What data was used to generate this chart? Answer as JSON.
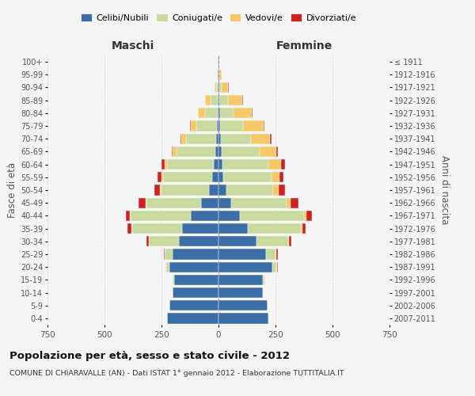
{
  "age_groups": [
    "0-4",
    "5-9",
    "10-14",
    "15-19",
    "20-24",
    "25-29",
    "30-34",
    "35-39",
    "40-44",
    "45-49",
    "50-54",
    "55-59",
    "60-64",
    "65-69",
    "70-74",
    "75-79",
    "80-84",
    "85-89",
    "90-94",
    "95-99",
    "100+"
  ],
  "birth_years": [
    "2007-2011",
    "2002-2006",
    "1997-2001",
    "1992-1996",
    "1987-1991",
    "1982-1986",
    "1977-1981",
    "1972-1976",
    "1967-1971",
    "1962-1966",
    "1957-1961",
    "1952-1956",
    "1947-1951",
    "1942-1946",
    "1937-1941",
    "1932-1936",
    "1927-1931",
    "1922-1926",
    "1917-1921",
    "1912-1916",
    "≤ 1911"
  ],
  "male_celibe": [
    225,
    215,
    200,
    195,
    215,
    200,
    175,
    160,
    120,
    75,
    40,
    28,
    20,
    15,
    12,
    8,
    5,
    4,
    3,
    2,
    2
  ],
  "male_coniugato": [
    1,
    2,
    3,
    5,
    15,
    35,
    130,
    220,
    265,
    240,
    210,
    215,
    205,
    170,
    130,
    90,
    55,
    30,
    8,
    3,
    1
  ],
  "male_vedovo": [
    0,
    0,
    0,
    0,
    1,
    2,
    2,
    3,
    4,
    5,
    6,
    8,
    10,
    15,
    20,
    25,
    30,
    25,
    8,
    2,
    0
  ],
  "male_divorziato": [
    0,
    0,
    0,
    1,
    2,
    4,
    8,
    15,
    18,
    30,
    25,
    15,
    15,
    5,
    5,
    3,
    2,
    0,
    0,
    0,
    0
  ],
  "female_celibe": [
    220,
    215,
    195,
    195,
    235,
    210,
    165,
    130,
    95,
    55,
    35,
    22,
    18,
    14,
    12,
    8,
    6,
    5,
    3,
    2,
    2
  ],
  "female_coniugato": [
    1,
    2,
    3,
    8,
    20,
    40,
    140,
    230,
    280,
    245,
    205,
    210,
    200,
    165,
    130,
    100,
    60,
    35,
    10,
    3,
    1
  ],
  "female_vedovo": [
    0,
    0,
    0,
    1,
    2,
    4,
    5,
    7,
    10,
    15,
    25,
    35,
    55,
    75,
    85,
    90,
    80,
    65,
    30,
    8,
    2
  ],
  "female_divorziato": [
    0,
    0,
    0,
    1,
    2,
    5,
    8,
    15,
    25,
    35,
    28,
    18,
    18,
    5,
    5,
    3,
    2,
    2,
    1,
    0,
    0
  ],
  "color_celibe": "#3a6ea5",
  "color_coniugato": "#c8daa0",
  "color_vedovo": "#f5c96a",
  "color_divorziato": "#cc2222",
  "background_color": "#f5f5f5",
  "grid_color": "#cccccc",
  "title": "Popolazione per età, sesso e stato civile - 2012",
  "subtitle": "COMUNE DI CHIARAVALLE (AN) - Dati ISTAT 1° gennaio 2012 - Elaborazione TUTTITALIA.IT",
  "xlabel_left": "Maschi",
  "xlabel_right": "Femmine",
  "ylabel_left": "Fasce di età",
  "ylabel_right": "Anni di nascita",
  "xlim": 750,
  "legend_labels": [
    "Celibi/Nubili",
    "Coniugati/e",
    "Vedovi/e",
    "Divorziati/e"
  ]
}
